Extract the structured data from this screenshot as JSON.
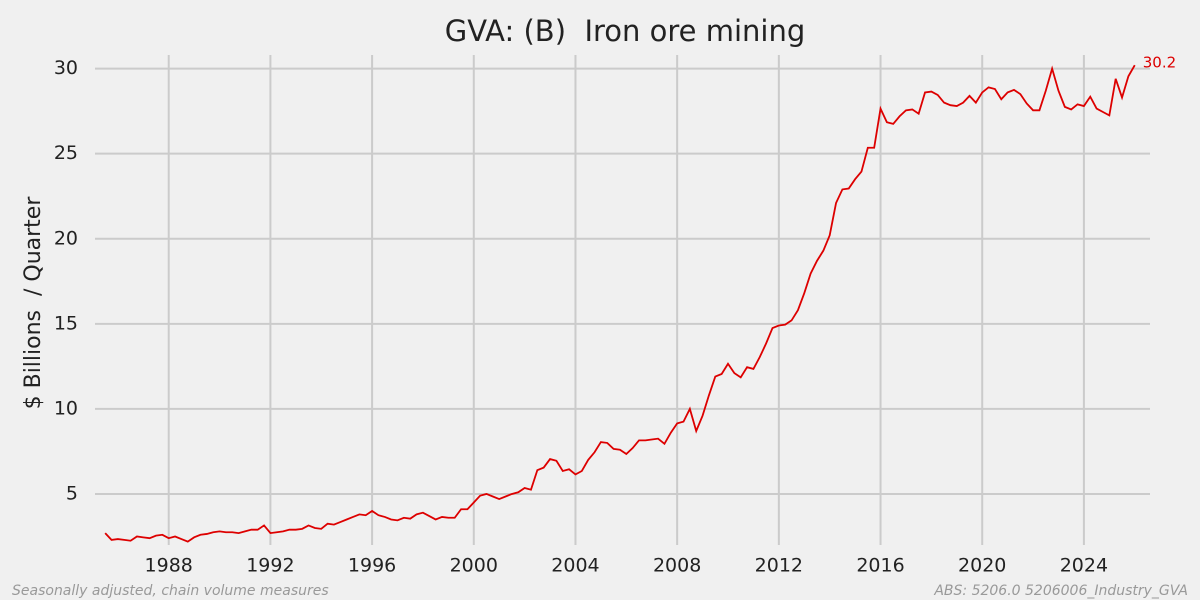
{
  "chart_data": {
    "type": "line",
    "title": "GVA: (B)  Iron ore mining",
    "y_label": "$ Billions  / Quarter",
    "footnote_left": "Seasonally adjusted, chain volume measures",
    "footnote_right": "ABS: 5206.0 5206006_Industry_GVA",
    "end_label": "30.2",
    "grid": true,
    "xlim": [
      1985.1,
      2026.6
    ],
    "xticks": [
      1988,
      1992,
      1996,
      2000,
      2004,
      2008,
      2012,
      2016,
      2020,
      2024
    ],
    "ylim": [
      2.0,
      30.8
    ],
    "yticks": [
      5,
      10,
      15,
      20,
      25,
      30
    ],
    "x": [
      1985.5,
      1985.75,
      1986,
      1986.25,
      1986.5,
      1986.75,
      1987,
      1987.25,
      1987.5,
      1987.75,
      1988,
      1988.25,
      1988.5,
      1988.75,
      1989,
      1989.25,
      1989.5,
      1989.75,
      1990,
      1990.25,
      1990.5,
      1990.75,
      1991,
      1991.25,
      1991.5,
      1991.75,
      1992,
      1992.25,
      1992.5,
      1992.75,
      1993,
      1993.25,
      1993.5,
      1993.75,
      1994,
      1994.25,
      1994.5,
      1994.75,
      1995,
      1995.25,
      1995.5,
      1995.75,
      1996,
      1996.25,
      1996.5,
      1996.75,
      1997,
      1997.25,
      1997.5,
      1997.75,
      1998,
      1998.25,
      1998.5,
      1998.75,
      1999,
      1999.25,
      1999.5,
      1999.75,
      2000,
      2000.25,
      2000.5,
      2000.75,
      2001,
      2001.25,
      2001.5,
      2001.75,
      2002,
      2002.25,
      2002.5,
      2002.75,
      2003,
      2003.25,
      2003.5,
      2003.75,
      2004,
      2004.25,
      2004.5,
      2004.75,
      2005,
      2005.25,
      2005.5,
      2005.75,
      2006,
      2006.25,
      2006.5,
      2006.75,
      2007,
      2007.25,
      2007.5,
      2007.75,
      2008,
      2008.25,
      2008.5,
      2008.75,
      2009,
      2009.25,
      2009.5,
      2009.75,
      2010,
      2010.25,
      2010.5,
      2010.75,
      2011,
      2011.25,
      2011.5,
      2011.75,
      2012,
      2012.25,
      2012.5,
      2012.75,
      2013,
      2013.25,
      2013.5,
      2013.75,
      2014,
      2014.25,
      2014.5,
      2014.75,
      2015,
      2015.25,
      2015.5,
      2015.75,
      2016,
      2016.25,
      2016.5,
      2016.75,
      2017,
      2017.25,
      2017.5,
      2017.75,
      2018,
      2018.25,
      2018.5,
      2018.75,
      2019,
      2019.25,
      2019.5,
      2019.75,
      2020,
      2020.25,
      2020.5,
      2020.75,
      2021,
      2021.25,
      2021.5,
      2021.75,
      2022,
      2022.25,
      2022.5,
      2022.75,
      2023,
      2023.25,
      2023.5,
      2023.75,
      2024,
      2024.25,
      2024.5,
      2024.75,
      2025,
      2025.25,
      2025.5,
      2025.75,
      2026
    ],
    "series": [
      {
        "color": "#dd0000",
        "values": [
          2.7,
          2.3,
          2.35,
          2.3,
          2.25,
          2.5,
          2.45,
          2.4,
          2.55,
          2.6,
          2.4,
          2.5,
          2.35,
          2.2,
          2.45,
          2.6,
          2.65,
          2.75,
          2.8,
          2.75,
          2.75,
          2.7,
          2.8,
          2.9,
          2.9,
          3.15,
          2.7,
          2.75,
          2.8,
          2.9,
          2.9,
          2.95,
          3.15,
          3.0,
          2.95,
          3.25,
          3.2,
          3.35,
          3.5,
          3.65,
          3.8,
          3.75,
          4.0,
          3.75,
          3.65,
          3.5,
          3.45,
          3.6,
          3.55,
          3.8,
          3.9,
          3.7,
          3.5,
          3.65,
          3.6,
          3.6,
          4.1,
          4.1,
          4.5,
          4.9,
          5.0,
          4.85,
          4.7,
          4.85,
          5.0,
          5.1,
          5.35,
          5.25,
          6.4,
          6.55,
          7.05,
          6.95,
          6.35,
          6.45,
          6.15,
          6.35,
          7.0,
          7.45,
          8.05,
          8.0,
          7.65,
          7.6,
          7.35,
          7.7,
          8.15,
          8.15,
          8.2,
          8.25,
          7.95,
          8.6,
          9.15,
          9.25,
          10.0,
          8.7,
          9.6,
          10.8,
          11.9,
          12.05,
          12.65,
          12.1,
          11.85,
          12.45,
          12.35,
          13.05,
          13.85,
          14.75,
          14.9,
          14.95,
          15.2,
          15.8,
          16.8,
          17.95,
          18.7,
          19.3,
          20.2,
          22.1,
          22.9,
          22.95,
          23.5,
          23.95,
          25.35,
          25.35,
          27.65,
          26.85,
          26.75,
          27.2,
          27.55,
          27.6,
          27.35,
          28.6,
          28.65,
          28.45,
          28.0,
          27.85,
          27.8,
          28.0,
          28.4,
          28.0,
          28.6,
          28.9,
          28.8,
          28.2,
          28.6,
          28.75,
          28.5,
          27.95,
          27.55,
          27.55,
          28.7,
          30.0,
          28.7,
          27.75,
          27.6,
          27.9,
          27.8,
          28.35,
          27.65,
          27.45,
          27.25,
          29.4,
          28.3,
          29.55,
          30.2
        ]
      }
    ]
  }
}
